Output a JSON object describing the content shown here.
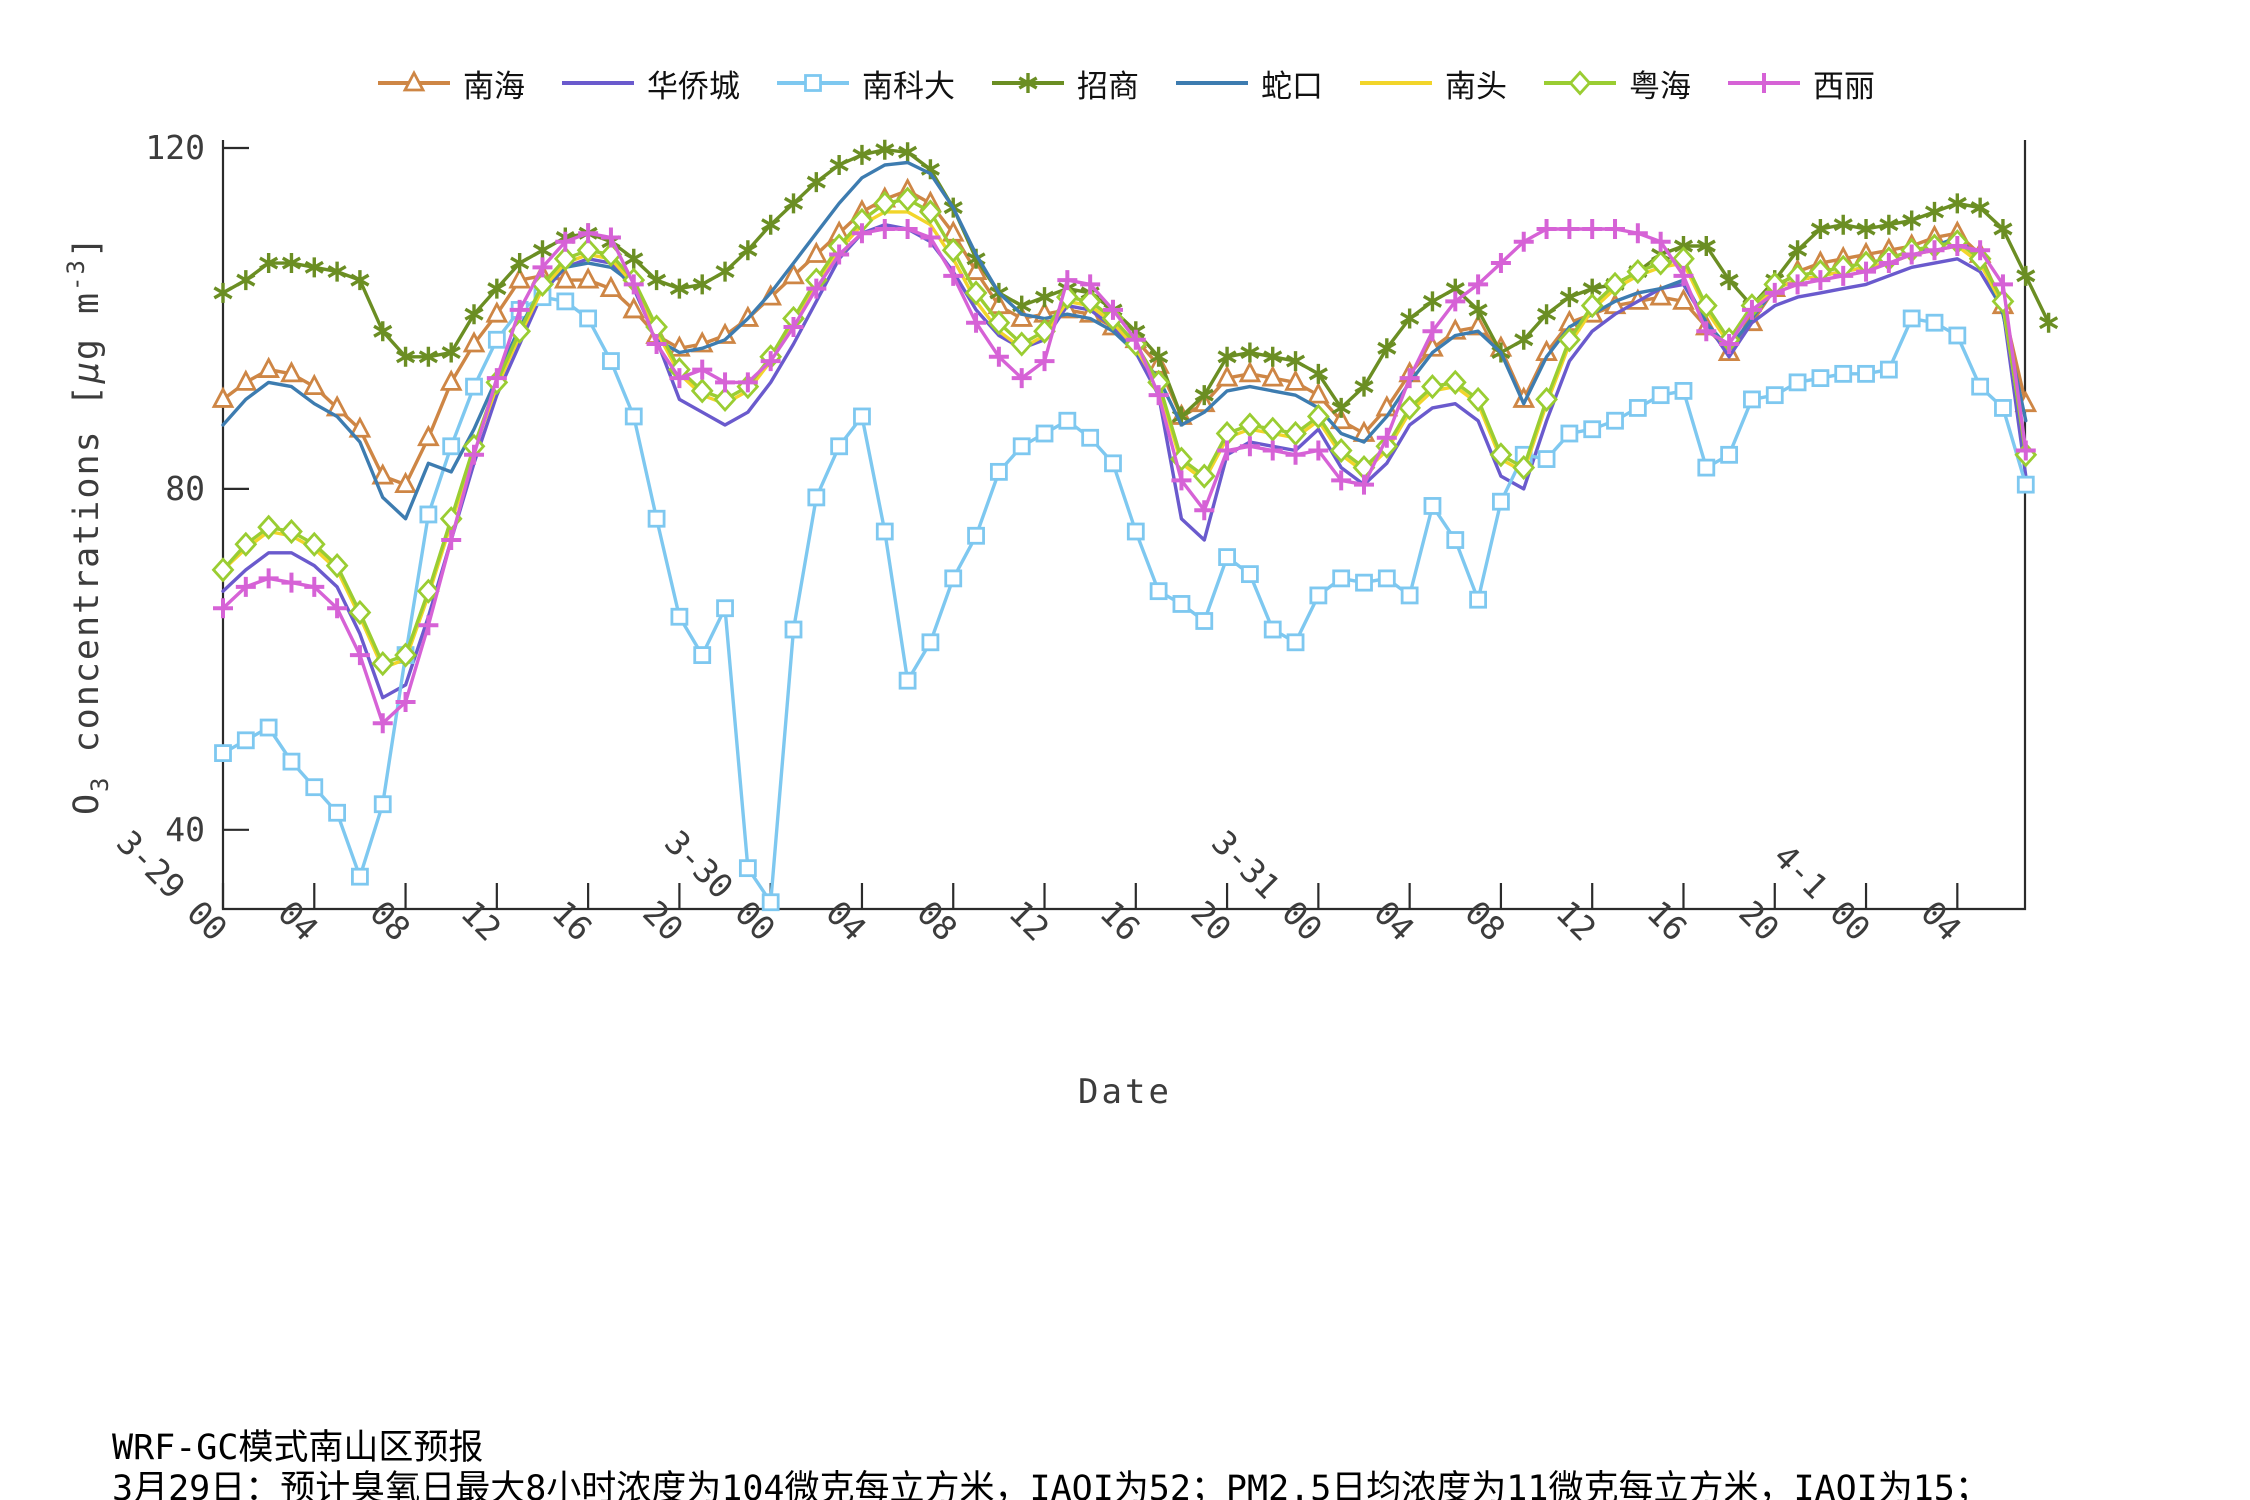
{
  "chart_data": {
    "type": "line",
    "title": "",
    "xlabel": "Date",
    "ylabel": "O3 concentrations [μg m-3]",
    "ylabel_parts": {
      "o": "O",
      "o_sub": "3",
      "mid": " concentrations [",
      "mu": "μ",
      "unit": "g m",
      "unit_sup": "-3",
      "close": "]"
    },
    "yticks": [
      120,
      80,
      40
    ],
    "ylim": [
      30.7,
      120.9
    ],
    "grid": false,
    "legend_position": "top-center",
    "x_start": "3-29 00:00",
    "x_step_hours": 1,
    "xtick_hours": [
      0,
      4,
      8,
      12,
      16,
      20,
      24,
      28,
      32,
      36,
      40,
      44,
      48,
      52,
      56,
      60,
      64,
      68,
      72,
      76
    ],
    "xtick_labels": [
      "3-29 00",
      "04",
      "08",
      "12",
      "16",
      "20",
      "3-30 00",
      "04",
      "08",
      "12",
      "16",
      "20",
      "3-31 00",
      "04",
      "08",
      "12",
      "16",
      "20",
      "4-1 00",
      "04"
    ],
    "series": [
      {
        "name": "南海",
        "color": "#CE8645",
        "marker": "triangle",
        "values": [
          90.5,
          92.5,
          94,
          93.5,
          92,
          89.5,
          87,
          81.5,
          80.5,
          86,
          92.5,
          97,
          100.5,
          104.5,
          105,
          104.5,
          104.5,
          103.5,
          101,
          98,
          96.5,
          97,
          98,
          100,
          102.5,
          105,
          107.5,
          110,
          112.5,
          114,
          115,
          113.5,
          110,
          105.5,
          101.5,
          100,
          100.5,
          101,
          100.5,
          99,
          97.5,
          94.5,
          88.5,
          90,
          93,
          93.5,
          93,
          92.5,
          91,
          88,
          86.5,
          89.5,
          93.5,
          96.5,
          98.5,
          99,
          96.5,
          90.5,
          96,
          99.5,
          100.5,
          101.5,
          102,
          102.5,
          102,
          99,
          96,
          99.5,
          103.5,
          105.5,
          106.5,
          107,
          107.5,
          108,
          108.5,
          109.5,
          110,
          107.5,
          101.5,
          90
        ]
      },
      {
        "name": "华侨城",
        "color": "#6A5ACD",
        "marker": "none",
        "values": [
          68,
          70.5,
          72.5,
          72.5,
          71,
          68.5,
          63,
          55.5,
          57,
          65,
          74,
          83,
          91,
          97,
          103,
          106,
          107,
          106.5,
          103.5,
          97.5,
          90.5,
          89,
          87.5,
          89,
          92.5,
          97,
          102,
          107,
          110,
          111,
          110.5,
          109,
          105.5,
          101,
          98,
          96.5,
          97.5,
          101.5,
          101,
          99,
          96,
          91,
          76.5,
          74,
          84,
          85.5,
          85,
          84.5,
          87,
          82.5,
          80.5,
          83,
          87.5,
          89.5,
          90,
          88,
          81.5,
          80,
          88,
          95,
          98.5,
          100.5,
          102,
          103.5,
          104,
          99.5,
          95.5,
          99.5,
          101.5,
          102.5,
          103,
          103.5,
          104,
          105,
          106,
          106.5,
          107,
          105.5,
          101,
          81.5
        ]
      },
      {
        "name": "南科大",
        "color": "#7EC8F0",
        "marker": "square",
        "values": [
          49,
          50.5,
          52,
          48,
          45,
          42,
          34.5,
          43,
          60.5,
          77,
          85,
          92,
          97.5,
          101,
          102.5,
          102,
          100,
          95,
          88.5,
          76.5,
          65,
          60.5,
          66,
          35.5,
          31.5,
          63.5,
          79,
          85,
          88.5,
          75,
          57.5,
          62,
          69.5,
          74.5,
          82,
          85,
          86.5,
          88,
          86,
          83,
          75,
          68,
          66.5,
          64.5,
          72,
          70,
          63.5,
          62,
          67.5,
          69.5,
          69,
          69.5,
          67.5,
          78,
          74,
          67,
          78.5,
          84,
          83.5,
          86.5,
          87,
          88,
          89.5,
          91,
          91.5,
          82.5,
          84,
          90.5,
          91,
          92.5,
          93,
          93.5,
          93.5,
          94,
          100,
          99.5,
          98,
          92,
          89.5,
          80.5
        ]
      },
      {
        "name": "招商",
        "color": "#6B8E23",
        "marker": "asterisk",
        "values": [
          103,
          104.5,
          106.5,
          106.5,
          106,
          105.5,
          104.5,
          98.5,
          95.5,
          95.5,
          96,
          100.5,
          103.5,
          106.5,
          108,
          109.5,
          110,
          109,
          107,
          104.5,
          103.5,
          104,
          105.5,
          108,
          111,
          113.5,
          116,
          118,
          119.2,
          119.8,
          119.5,
          117.5,
          113,
          107,
          103,
          101.5,
          102.5,
          103.5,
          103,
          101,
          98.5,
          95.5,
          88.5,
          91,
          95.5,
          96,
          95.5,
          95,
          93.5,
          89.5,
          92,
          96.5,
          100,
          102,
          103.5,
          101,
          96,
          97.5,
          100.5,
          102.5,
          103.5,
          104,
          105.5,
          107.5,
          108.5,
          108.5,
          104.5,
          101.5,
          104.5,
          108,
          110.5,
          111,
          110.5,
          111,
          111.5,
          112.5,
          113.5,
          113,
          110.5,
          105,
          99.5
        ]
      },
      {
        "name": "蛇口",
        "color": "#3D7CB0",
        "marker": "none",
        "values": [
          87.5,
          90.5,
          92.5,
          92,
          90,
          88.5,
          85.5,
          79,
          76.5,
          83,
          82,
          87,
          93,
          99,
          103.5,
          106,
          106.5,
          106,
          104,
          97.5,
          96,
          96.5,
          97.5,
          100,
          103,
          106.5,
          110,
          113.5,
          116.5,
          118,
          118.3,
          117,
          113,
          107.5,
          103,
          100.5,
          100,
          100.5,
          100,
          98.5,
          96,
          93,
          87.5,
          89,
          91.5,
          92,
          91.5,
          91,
          89.5,
          86.5,
          85.5,
          88.5,
          92.5,
          96,
          98,
          98.5,
          96,
          90,
          95.5,
          99,
          100.5,
          102,
          103,
          103.5,
          104.5,
          99.5,
          96.5,
          100,
          103.5,
          104.5,
          105,
          105.5,
          106,
          106.5,
          107.5,
          108.5,
          109.5,
          107,
          100.5,
          88
        ]
      },
      {
        "name": "南头",
        "color": "#F2D52A",
        "marker": "none",
        "values": [
          70.5,
          73,
          75,
          74.5,
          73,
          70.5,
          65,
          59,
          60,
          67.5,
          76,
          84.5,
          92,
          98,
          103.5,
          106.5,
          107.5,
          107,
          104,
          98.5,
          93.5,
          91,
          90,
          91.5,
          95,
          99.5,
          104,
          108,
          111,
          112.5,
          112.5,
          111,
          107,
          102,
          98.5,
          96.5,
          98,
          102,
          101.5,
          99.5,
          96.5,
          92,
          83,
          81,
          86,
          87,
          86.5,
          86,
          88,
          84,
          82,
          84.5,
          89,
          91.5,
          92,
          90,
          83.5,
          82,
          90,
          97,
          101,
          103.5,
          105,
          106,
          106.5,
          101,
          97,
          101,
          103.5,
          104.5,
          105,
          105.5,
          106,
          106.5,
          107.5,
          108,
          108.5,
          106.5,
          101.5,
          84.5
        ]
      },
      {
        "name": "粤海",
        "color": "#9ACD32",
        "marker": "diamond",
        "values": [
          70.5,
          73.5,
          75.5,
          75,
          73.5,
          71,
          65.5,
          59.5,
          60.5,
          68,
          76.5,
          85,
          92.5,
          98.5,
          104,
          107,
          108,
          107.5,
          104.5,
          99,
          94,
          91.5,
          90.5,
          92,
          95.5,
          100,
          104.5,
          108.5,
          111.5,
          113.5,
          114,
          112.5,
          108,
          103,
          99.5,
          97,
          98.5,
          102.5,
          102,
          100,
          97,
          92.5,
          83.5,
          81.5,
          86.5,
          87.5,
          87,
          86.5,
          88.5,
          84.5,
          82.5,
          85,
          89.5,
          92,
          92.5,
          90.5,
          84,
          82.5,
          90.5,
          97.5,
          101.5,
          104,
          105.5,
          106.5,
          107,
          101.5,
          97.5,
          101.5,
          104,
          105,
          105.5,
          106,
          106.5,
          107,
          108,
          108.5,
          109,
          107,
          102,
          84
        ]
      },
      {
        "name": "西丽",
        "color": "#D662D6",
        "marker": "plus",
        "values": [
          66,
          68.5,
          69.5,
          69,
          68.5,
          66,
          60.5,
          52.5,
          55,
          64,
          74,
          84,
          93,
          101,
          106,
          109,
          110,
          109.5,
          104,
          97,
          93,
          94,
          92.5,
          92.5,
          95,
          99,
          103.5,
          107.5,
          110,
          110.5,
          110.5,
          109.5,
          105,
          99.5,
          95.5,
          93,
          95,
          104.5,
          104,
          101,
          97.5,
          91,
          81,
          77.5,
          84.5,
          85,
          84.5,
          84,
          84.5,
          81,
          80.5,
          86,
          93,
          98.5,
          102,
          104,
          106.5,
          109,
          110.5,
          110.5,
          110.5,
          110.5,
          110,
          109,
          105,
          98.5,
          97,
          101,
          103,
          104,
          104.5,
          105,
          105.5,
          106.5,
          107.5,
          108,
          108.5,
          108,
          104,
          84.5
        ]
      }
    ]
  },
  "footer": {
    "line1": "WRF-GC模式南山区预报",
    "line2": "3月29日：预计臭氧日最大8小时浓度为104微克每立方米，IAQI为52；PM2.5日均浓度为11微克每立方米，IAQI为15；"
  }
}
